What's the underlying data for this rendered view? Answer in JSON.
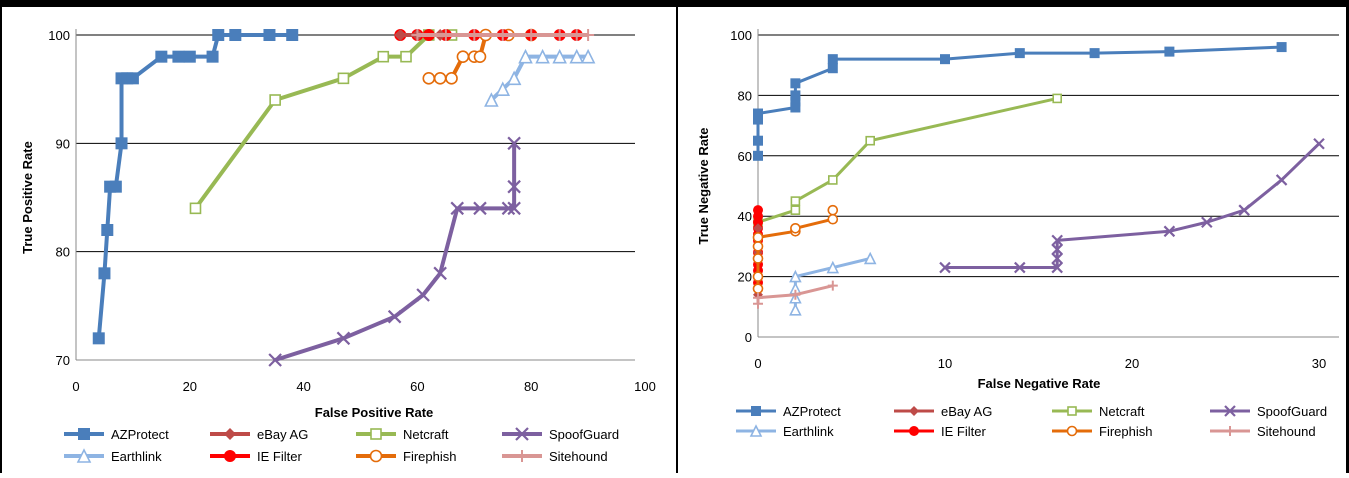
{
  "colors": {
    "AZProtect": "#4a7ebb",
    "eBay AG": "#be4b48",
    "Netcraft": "#98b954",
    "SpoofGuard": "#7d60a0",
    "Earthlink": "#8eb4e3",
    "IE Filter": "#ff0000",
    "Firephish": "#e46c0a",
    "Sitehound": "#d99694"
  },
  "legend_order": [
    "AZProtect",
    "eBay AG",
    "Netcraft",
    "SpoofGuard",
    "Earthlink",
    "IE Filter",
    "Firephish",
    "Sitehound"
  ],
  "marker_icons": {
    "AZProtect": "filled-square",
    "eBay AG": "filled-diamond",
    "Netcraft": "hollow-square",
    "SpoofGuard": "x-cross",
    "Earthlink": "hollow-triangle",
    "IE Filter": "filled-circle",
    "Firephish": "hollow-circle",
    "Sitehound": "plus"
  },
  "chart_data": [
    {
      "type": "line",
      "xlabel": "False  Positive Rate",
      "ylabel": "True Positive Rate",
      "xlim": [
        0,
        100
      ],
      "ylim": [
        70,
        100
      ],
      "xticks": [
        "0",
        "20",
        "40",
        "60",
        "80",
        "100"
      ],
      "yticks": [
        "70",
        "80",
        "90",
        "100"
      ],
      "grid": "horizontal",
      "legend": "bottom",
      "series": [
        {
          "name": "AZProtect",
          "points": [
            [
              4,
              72
            ],
            [
              5,
              78
            ],
            [
              5.5,
              82
            ],
            [
              6,
              86
            ],
            [
              7,
              86
            ],
            [
              8,
              90
            ],
            [
              8,
              96
            ],
            [
              9,
              96
            ],
            [
              10,
              96
            ],
            [
              15,
              98
            ],
            [
              18,
              98
            ],
            [
              20,
              98
            ],
            [
              24,
              98
            ],
            [
              25,
              100
            ],
            [
              28,
              100
            ],
            [
              34,
              100
            ],
            [
              38,
              100
            ]
          ]
        },
        {
          "name": "Netcraft",
          "points": [
            [
              21,
              84
            ],
            [
              35,
              94
            ],
            [
              47,
              96
            ],
            [
              54,
              98
            ],
            [
              58,
              98
            ],
            [
              62,
              100
            ],
            [
              66,
              100
            ]
          ]
        },
        {
          "name": "SpoofGuard",
          "points": [
            [
              35,
              70
            ],
            [
              47,
              72
            ],
            [
              56,
              74
            ],
            [
              61,
              76
            ],
            [
              64,
              78
            ],
            [
              67,
              84
            ],
            [
              71,
              84
            ],
            [
              76,
              84
            ],
            [
              77,
              84
            ],
            [
              77,
              86
            ],
            [
              77,
              90
            ]
          ]
        },
        {
          "name": "Firephish",
          "points": [
            [
              62,
              96
            ],
            [
              64,
              96
            ],
            [
              66,
              96
            ],
            [
              68,
              98
            ],
            [
              70,
              98
            ],
            [
              71,
              98
            ],
            [
              72,
              100
            ],
            [
              76,
              100
            ],
            [
              80,
              100
            ]
          ]
        },
        {
          "name": "Earthlink",
          "points": [
            [
              73,
              94
            ],
            [
              75,
              95
            ],
            [
              77,
              96
            ],
            [
              79,
              98
            ],
            [
              82,
              98
            ],
            [
              85,
              98
            ],
            [
              88,
              98
            ],
            [
              90,
              98
            ]
          ]
        },
        {
          "name": "IE Filter",
          "points": [
            [
              57,
              100
            ],
            [
              60,
              100
            ],
            [
              62,
              100
            ],
            [
              65,
              100
            ],
            [
              70,
              100
            ],
            [
              75,
              100
            ],
            [
              80,
              100
            ],
            [
              85,
              100
            ],
            [
              88,
              100
            ]
          ]
        },
        {
          "name": "eBay AG",
          "points": [
            [
              57,
              100
            ],
            [
              60,
              100
            ],
            [
              64,
              100
            ]
          ]
        },
        {
          "name": "Sitehound",
          "points": [
            [
              60,
              100
            ],
            [
              65,
              100
            ],
            [
              70,
              100
            ],
            [
              75,
              100
            ],
            [
              80,
              100
            ],
            [
              85,
              100
            ],
            [
              88,
              100
            ],
            [
              90,
              100
            ]
          ]
        }
      ]
    },
    {
      "type": "line",
      "xlabel": "False Negative Rate",
      "ylabel": "True Negative Rate",
      "xlim": [
        0,
        30
      ],
      "ylim": [
        0,
        100
      ],
      "xticks": [
        "0",
        "10",
        "20",
        "30"
      ],
      "yticks": [
        "0",
        "20",
        "40",
        "60",
        "80",
        "100"
      ],
      "grid": "horizontal",
      "legend": "bottom",
      "series": [
        {
          "name": "AZProtect",
          "points": [
            [
              0,
              60
            ],
            [
              0,
              65
            ],
            [
              0,
              72
            ],
            [
              0,
              74
            ],
            [
              2,
              76
            ],
            [
              2,
              78
            ],
            [
              2,
              80
            ],
            [
              2,
              84
            ],
            [
              4,
              89
            ],
            [
              4,
              92
            ],
            [
              10,
              92
            ],
            [
              14,
              94
            ],
            [
              18,
              94
            ],
            [
              22,
              94.5
            ],
            [
              28,
              96
            ]
          ]
        },
        {
          "name": "Netcraft",
          "points": [
            [
              0,
              38
            ],
            [
              2,
              42
            ],
            [
              2,
              45
            ],
            [
              4,
              52
            ],
            [
              6,
              65
            ],
            [
              16,
              79
            ]
          ]
        },
        {
          "name": "SpoofGuard",
          "points": [
            [
              10,
              23
            ],
            [
              14,
              23
            ],
            [
              16,
              23
            ],
            [
              16,
              26
            ],
            [
              16,
              29
            ],
            [
              16,
              32
            ],
            [
              22,
              35
            ],
            [
              24,
              38
            ],
            [
              26,
              42
            ],
            [
              28,
              52
            ],
            [
              30,
              64
            ]
          ]
        },
        {
          "name": "IE Filter",
          "points": [
            [
              0,
              16
            ],
            [
              0,
              18
            ],
            [
              0,
              20
            ],
            [
              0,
              22
            ],
            [
              0,
              24
            ],
            [
              0,
              26
            ],
            [
              0,
              28
            ],
            [
              0,
              30
            ],
            [
              0,
              32
            ],
            [
              0,
              34
            ],
            [
              0,
              36
            ],
            [
              0,
              38
            ],
            [
              0,
              40
            ],
            [
              0,
              42
            ]
          ]
        },
        {
          "name": "eBay AG",
          "points": [
            [
              0,
              14
            ],
            [
              0,
              28
            ],
            [
              0,
              36
            ]
          ]
        },
        {
          "name": "Firephish",
          "points": [
            [
              0,
              16
            ],
            [
              0,
              20
            ],
            [
              0,
              26
            ],
            [
              0,
              30
            ],
            [
              0,
              33
            ],
            [
              2,
              35
            ],
            [
              2,
              36
            ],
            [
              4,
              39
            ],
            [
              4,
              42
            ]
          ]
        },
        {
          "name": "Earthlink",
          "points": [
            [
              2,
              9
            ],
            [
              2,
              13
            ],
            [
              2,
              16
            ],
            [
              2,
              20
            ],
            [
              4,
              23
            ],
            [
              6,
              26
            ]
          ]
        },
        {
          "name": "Sitehound",
          "points": [
            [
              0,
              11
            ],
            [
              0,
              13
            ],
            [
              2,
              14
            ],
            [
              4,
              17
            ]
          ]
        }
      ]
    }
  ]
}
